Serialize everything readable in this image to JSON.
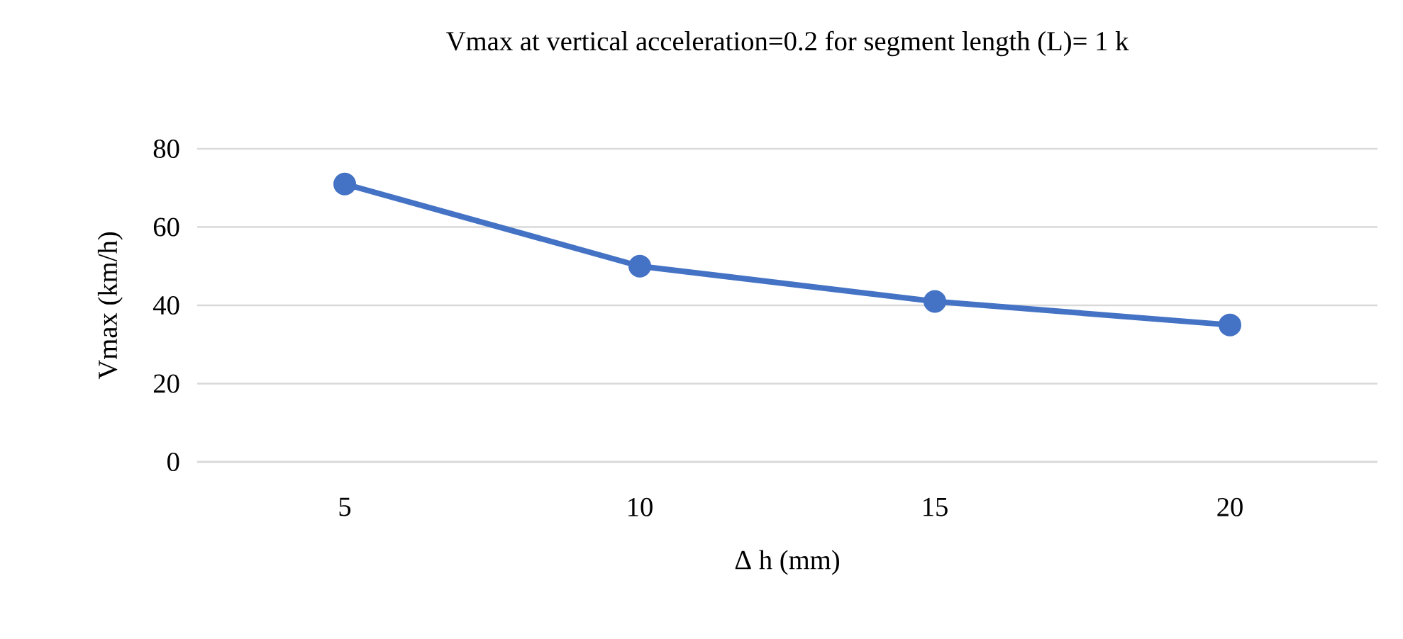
{
  "chart_data": {
    "type": "line",
    "title": "Vmax at vertical acceleration=0.2 for segment length (L)= 1 k",
    "xlabel": "Δ h (mm)",
    "ylabel": "Vmax (km/h)",
    "categories": [
      "5",
      "10",
      "15",
      "20"
    ],
    "series": [
      {
        "color": "#4472c4",
        "values": [
          71,
          50,
          41,
          35
        ]
      }
    ],
    "ylim": [
      0,
      80
    ],
    "yticks": [
      0,
      20,
      40,
      60,
      80
    ],
    "grid": "y",
    "marker": "circle",
    "line_style": "solid",
    "legend": false
  }
}
